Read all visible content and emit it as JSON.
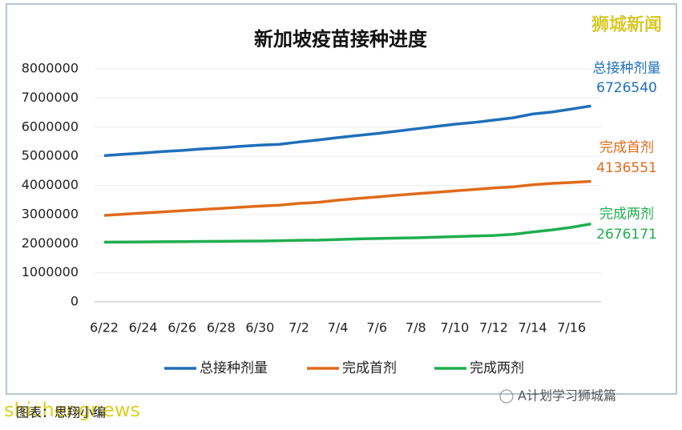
{
  "chart_data": {
    "type": "line",
    "title": "新加坡疫苗接种进度",
    "categories": [
      "6/22",
      null,
      "6/24",
      null,
      "6/26",
      null,
      "6/28",
      null,
      "6/30",
      null,
      "7/2",
      null,
      "7/4",
      null,
      "7/6",
      null,
      "7/8",
      null,
      "7/10",
      null,
      "7/12",
      null,
      "7/14",
      null,
      "7/16",
      null
    ],
    "series": [
      {
        "name": "总接种剂量",
        "color": "#1f6fb8",
        "values": [
          5020000,
          5070000,
          5110000,
          5160000,
          5200000,
          5250000,
          5290000,
          5340000,
          5380000,
          5410000,
          5490000,
          5560000,
          5640000,
          5710000,
          5780000,
          5860000,
          5940000,
          6020000,
          6100000,
          6160000,
          6240000,
          6320000,
          6450000,
          6520000,
          6620000,
          6726540
        ]
      },
      {
        "name": "完成首剂",
        "color": "#e06b1a",
        "values": [
          2970000,
          3010000,
          3050000,
          3090000,
          3130000,
          3170000,
          3210000,
          3250000,
          3290000,
          3320000,
          3380000,
          3420000,
          3490000,
          3550000,
          3600000,
          3660000,
          3710000,
          3760000,
          3810000,
          3860000,
          3910000,
          3950000,
          4020000,
          4070000,
          4100000,
          4136551
        ]
      },
      {
        "name": "完成两剂",
        "color": "#1fae4f",
        "values": [
          2050000,
          2055000,
          2060000,
          2065000,
          2070000,
          2075000,
          2080000,
          2085000,
          2090000,
          2100000,
          2115000,
          2120000,
          2140000,
          2160000,
          2175000,
          2190000,
          2200000,
          2220000,
          2240000,
          2260000,
          2280000,
          2320000,
          2400000,
          2470000,
          2560000,
          2676171
        ]
      }
    ],
    "ylim": [
      0,
      8000000
    ],
    "yticks": [
      0,
      1000000,
      2000000,
      3000000,
      4000000,
      5000000,
      6000000,
      7000000,
      8000000
    ],
    "grid": true,
    "legend": "bottom"
  },
  "watermark": "狮城新闻",
  "footer_watermark": "shichengnews",
  "source": "图表：思翔小编",
  "wechat": "A计划学习狮城篇"
}
